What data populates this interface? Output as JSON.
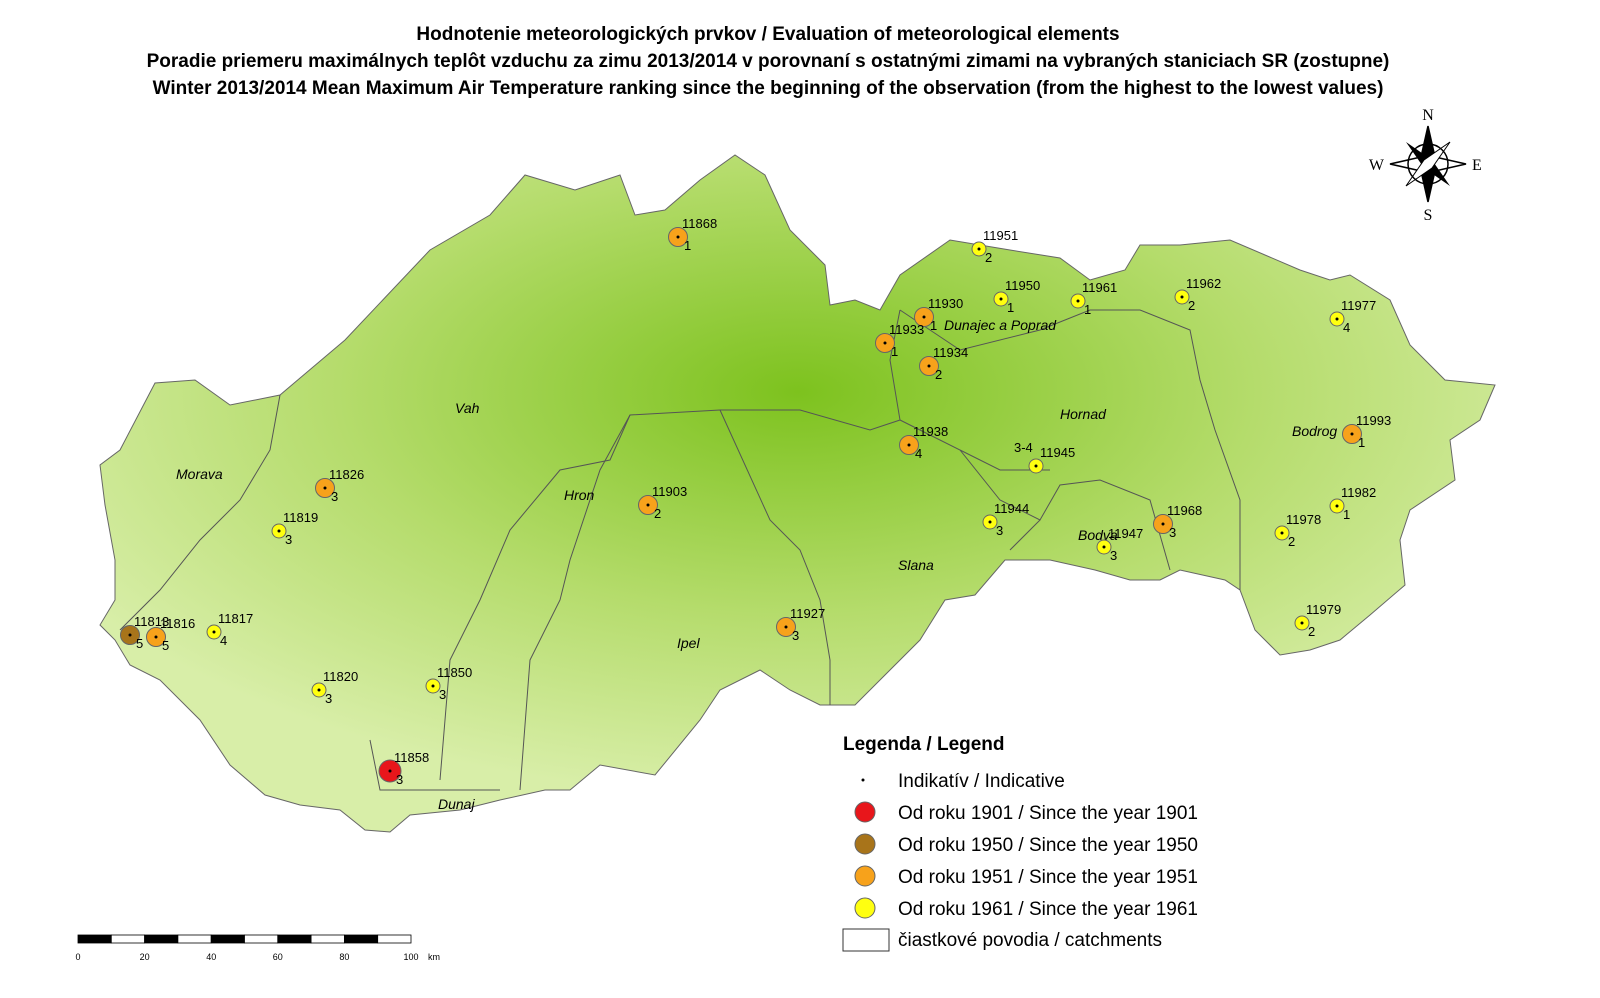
{
  "header": {
    "titles": [
      "Hodnotenie meteorologických prvkov / Evaluation of meteorological elements",
      "Poradie priemeru maximálnych teplôt vzduchu za zimu 2013/2014 v porovnaní s ostatnými zimami na vybraných staniciach SR (zostupne)",
      "Winter 2013/2014 Mean Maximum Air Temperature ranking since the beginning of the observation (from the highest to the lowest values)"
    ]
  },
  "compass": [
    "N",
    "E",
    "S",
    "W"
  ],
  "basins": [
    "Morava",
    "Vah",
    "Hron",
    "Ipel",
    "Slana",
    "Hornad",
    "Bodva",
    "Bodrog",
    "Dunajec a Poprad",
    "Dunaj"
  ],
  "legend": {
    "title": "Legenda / Legend",
    "indicative": "Indikatív / Indicative",
    "catchments": "čiastkové povodia / catchments",
    "classes": [
      {
        "label": "Od roku 1901 / Since the year 1901",
        "color": "#e8161b",
        "stations": [
          {
            "id": "11858",
            "rank": "3"
          }
        ]
      },
      {
        "label": "Od roku 1950 / Since the year 1950",
        "color": "#a8741a",
        "stations": [
          {
            "id": "11813",
            "rank": "5"
          }
        ]
      },
      {
        "label": "Od roku 1951 / Since the year 1951",
        "color": "#f7a21b",
        "stations": [
          {
            "id": "11868",
            "rank": "1"
          },
          {
            "id": "11930",
            "rank": "1"
          },
          {
            "id": "11933",
            "rank": "1"
          },
          {
            "id": "11934",
            "rank": "2"
          },
          {
            "id": "11938",
            "rank": "4"
          },
          {
            "id": "11826",
            "rank": "3"
          },
          {
            "id": "11903",
            "rank": "2"
          },
          {
            "id": "11816",
            "rank": "5"
          },
          {
            "id": "11927",
            "rank": "3"
          },
          {
            "id": "11968",
            "rank": "3"
          },
          {
            "id": "11993",
            "rank": "1"
          }
        ]
      },
      {
        "label": "Od roku 1961 / Since the year 1961",
        "color": "#ffff10",
        "stations": [
          {
            "id": "11951",
            "rank": "2"
          },
          {
            "id": "11950",
            "rank": "1"
          },
          {
            "id": "11961",
            "rank": "1"
          },
          {
            "id": "11962",
            "rank": "2"
          },
          {
            "id": "11977",
            "rank": "4"
          },
          {
            "id": "11945",
            "rank": "3-4"
          },
          {
            "id": "11944",
            "rank": "3"
          },
          {
            "id": "11947",
            "rank": "3"
          },
          {
            "id": "11982",
            "rank": "1"
          },
          {
            "id": "11978",
            "rank": "2"
          },
          {
            "id": "11979",
            "rank": "2"
          },
          {
            "id": "11819",
            "rank": "3"
          },
          {
            "id": "11817",
            "rank": "4"
          },
          {
            "id": "11820",
            "rank": "3"
          },
          {
            "id": "11850",
            "rank": "3"
          }
        ]
      }
    ]
  },
  "scale": {
    "labels": [
      0,
      20,
      40,
      60,
      80,
      100
    ],
    "unit": "km"
  }
}
